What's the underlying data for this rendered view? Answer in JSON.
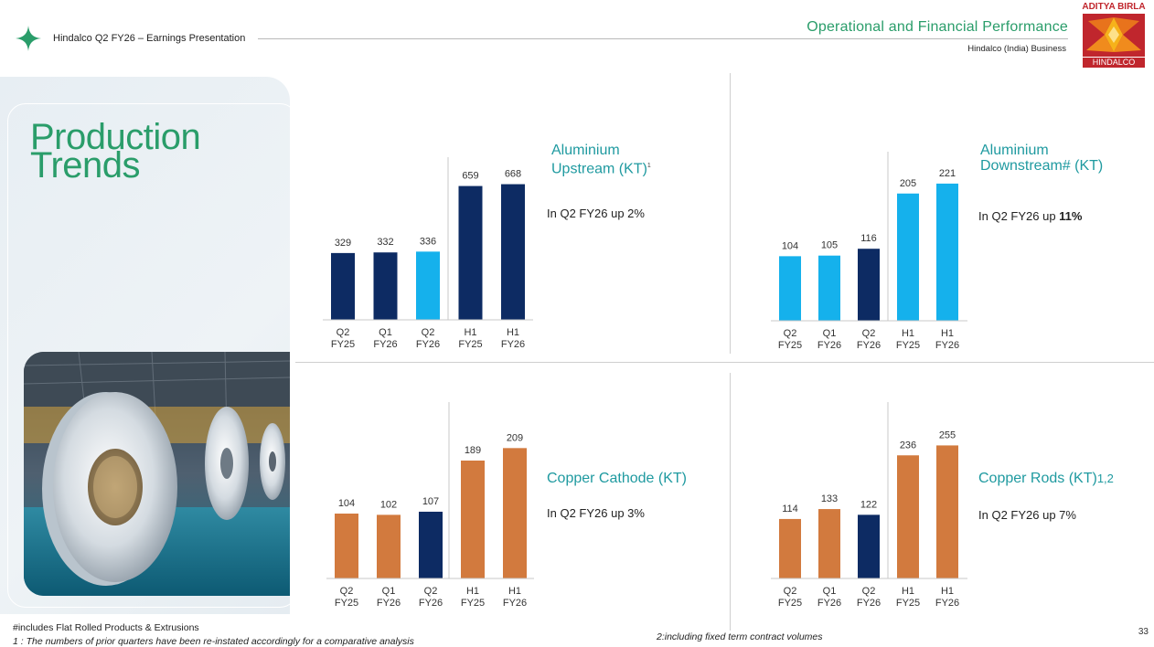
{
  "header": {
    "deck_title": "Hindalco Q2 FY26 – Earnings Presentation",
    "section_title": "Operational and Financial Performance",
    "section_subtitle": "Hindalco (India) Business"
  },
  "logo": {
    "top_text": "ADITYA BIRLA",
    "bottom_text": "HINDALCO"
  },
  "page_title": {
    "line1": "Production",
    "line2": "Trends"
  },
  "colors": {
    "navy": "#0d2b63",
    "light_blue": "#15b1ec",
    "copper": "#d27a3e",
    "green": "#2a9d6a",
    "teal": "#1f9aa0"
  },
  "chart_data": [
    {
      "id": "upstream",
      "type": "bar",
      "title": "Aluminium",
      "title_line2": "Upstream (KT)",
      "title_sup": "1",
      "note": "In Q2 FY26 up 2%",
      "categories": [
        "Q2 FY25",
        "Q1 FY26",
        "Q2 FY26",
        "H1 FY25",
        "H1 FY26"
      ],
      "values": [
        329,
        332,
        336,
        659,
        668
      ],
      "bar_colors": [
        "#0d2b63",
        "#0d2b63",
        "#15b1ec",
        "#0d2b63",
        "#0d2b63"
      ],
      "ylim": [
        0,
        720
      ]
    },
    {
      "id": "downstream",
      "type": "bar",
      "title": "Aluminium",
      "title_line2": "Downstream# (KT)",
      "note_prefix": "In Q2 FY26 up ",
      "note_bold": "11%",
      "categories": [
        "Q2 FY25",
        "Q1 FY26",
        "Q2 FY26",
        "H1 FY25",
        "H1 FY26"
      ],
      "values": [
        104,
        105,
        116,
        205,
        221
      ],
      "bar_colors": [
        "#15b1ec",
        "#15b1ec",
        "#0d2b63",
        "#15b1ec",
        "#15b1ec"
      ],
      "ylim": [
        0,
        240
      ]
    },
    {
      "id": "cathode",
      "type": "bar",
      "title": "Copper Cathode (KT)",
      "note": "In Q2 FY26 up 3%",
      "categories": [
        "Q2 FY25",
        "Q1 FY26",
        "Q2 FY26",
        "H1 FY25",
        "H1 FY26"
      ],
      "values": [
        104,
        102,
        107,
        189,
        209
      ],
      "bar_colors": [
        "#d27a3e",
        "#d27a3e",
        "#0d2b63",
        "#d27a3e",
        "#d27a3e"
      ],
      "ylim": [
        0,
        230
      ]
    },
    {
      "id": "rods",
      "type": "bar",
      "title": "Copper Rods (KT)",
      "title_sup": "1,2",
      "note": "In Q2 FY26 up 7%",
      "categories": [
        "Q2 FY25",
        "Q1 FY26",
        "Q2 FY26",
        "H1 FY25",
        "H1 FY26"
      ],
      "values": [
        114,
        133,
        122,
        236,
        255
      ],
      "bar_colors": [
        "#d27a3e",
        "#d27a3e",
        "#0d2b63",
        "#d27a3e",
        "#d27a3e"
      ],
      "ylim": [
        0,
        275
      ]
    }
  ],
  "footer": {
    "note1": "#includes Flat Rolled Products & Extrusions",
    "note2": "1 : The numbers of prior quarters have been re-instated accordingly for a comparative analysis",
    "note3": "2:including fixed term contract volumes",
    "page_number": "33"
  }
}
